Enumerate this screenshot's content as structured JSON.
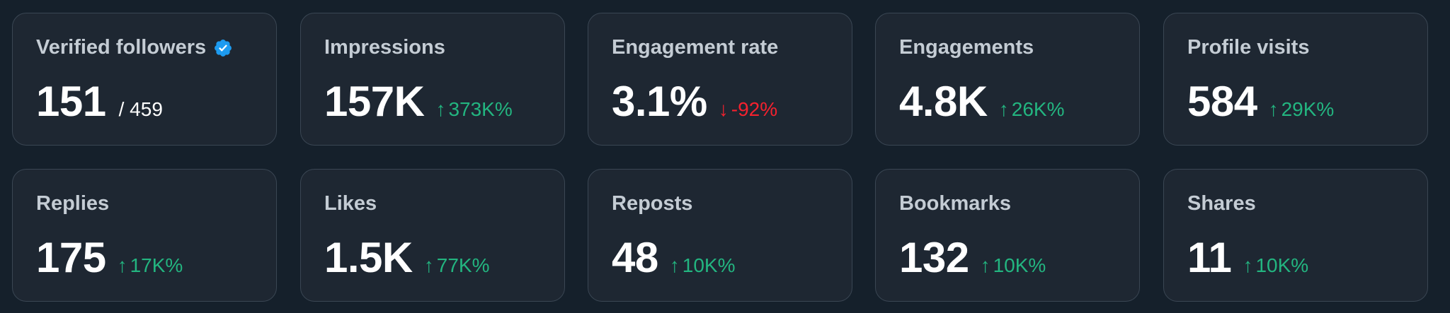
{
  "cards": [
    {
      "label": "Verified followers",
      "value": "151",
      "suffix": "/ 459"
    },
    {
      "label": "Impressions",
      "value": "157K",
      "change": "373K%",
      "direction": "up"
    },
    {
      "label": "Engagement rate",
      "value": "3.1%",
      "change": "-92%",
      "direction": "down"
    },
    {
      "label": "Engagements",
      "value": "4.8K",
      "change": "26K%",
      "direction": "up"
    },
    {
      "label": "Profile visits",
      "value": "584",
      "change": "29K%",
      "direction": "up"
    },
    {
      "label": "Replies",
      "value": "175",
      "change": "17K%",
      "direction": "up"
    },
    {
      "label": "Likes",
      "value": "1.5K",
      "change": "77K%",
      "direction": "up"
    },
    {
      "label": "Reposts",
      "value": "48",
      "change": "10K%",
      "direction": "up"
    },
    {
      "label": "Bookmarks",
      "value": "132",
      "change": "10K%",
      "direction": "up"
    },
    {
      "label": "Shares",
      "value": "11",
      "change": "10K%",
      "direction": "up"
    }
  ],
  "arrows": {
    "up": "↑",
    "down": "↓"
  },
  "colors": {
    "up": "#23b580",
    "down": "#f4212e",
    "verified": "#1d9bf0"
  },
  "icons": {
    "verified": "verified-badge-icon"
  }
}
